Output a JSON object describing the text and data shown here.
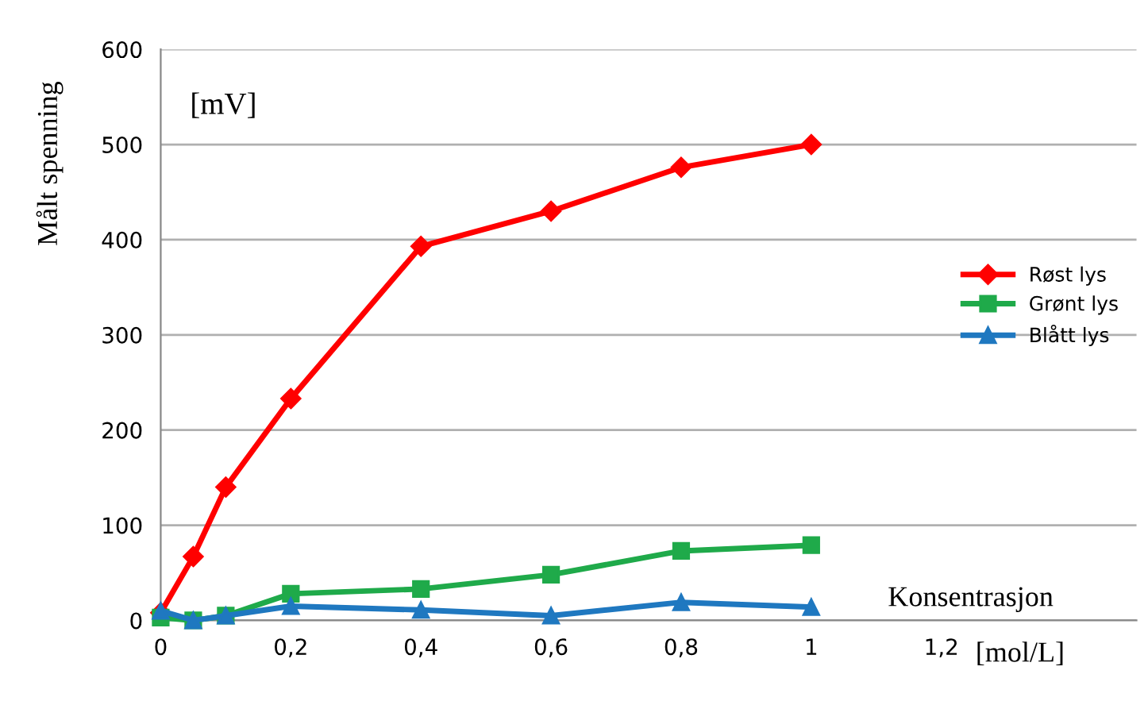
{
  "chart_data": {
    "type": "line",
    "xlabel": "Konsentrasjon",
    "ylabel": "Målt spenning",
    "annotations": [
      "[mV]",
      "[mol/L]"
    ],
    "x": [
      0,
      0.05,
      0.1,
      0.2,
      0.4,
      0.6,
      0.8,
      1
    ],
    "series": [
      {
        "name": "Røst lys",
        "color": "#ff0000",
        "marker": "diamond",
        "values": [
          8,
          67,
          140,
          233,
          393,
          430,
          476,
          500
        ]
      },
      {
        "name": "Grønt lys",
        "color": "#1faa4a",
        "marker": "square",
        "values": [
          3,
          0,
          5,
          28,
          33,
          48,
          73,
          79
        ]
      },
      {
        "name": "Blått lys",
        "color": "#1f78c0",
        "marker": "triangle",
        "values": [
          10,
          0,
          5,
          15,
          11,
          5,
          19,
          14
        ]
      }
    ],
    "xlim": [
      0,
      1.5
    ],
    "xticks": [
      0,
      {
        "value": 0.2,
        "label": "0,2"
      },
      {
        "value": 0.4,
        "label": "0,4"
      },
      {
        "value": 0.6,
        "label": "0,6"
      },
      {
        "value": 0.8,
        "label": "0,8"
      },
      1,
      {
        "value": 1.2,
        "label": "1,2"
      }
    ],
    "ylim": [
      0,
      600
    ],
    "yticks": [
      0,
      100,
      200,
      300,
      400,
      500,
      600
    ],
    "grid": "y",
    "legend": "right"
  }
}
